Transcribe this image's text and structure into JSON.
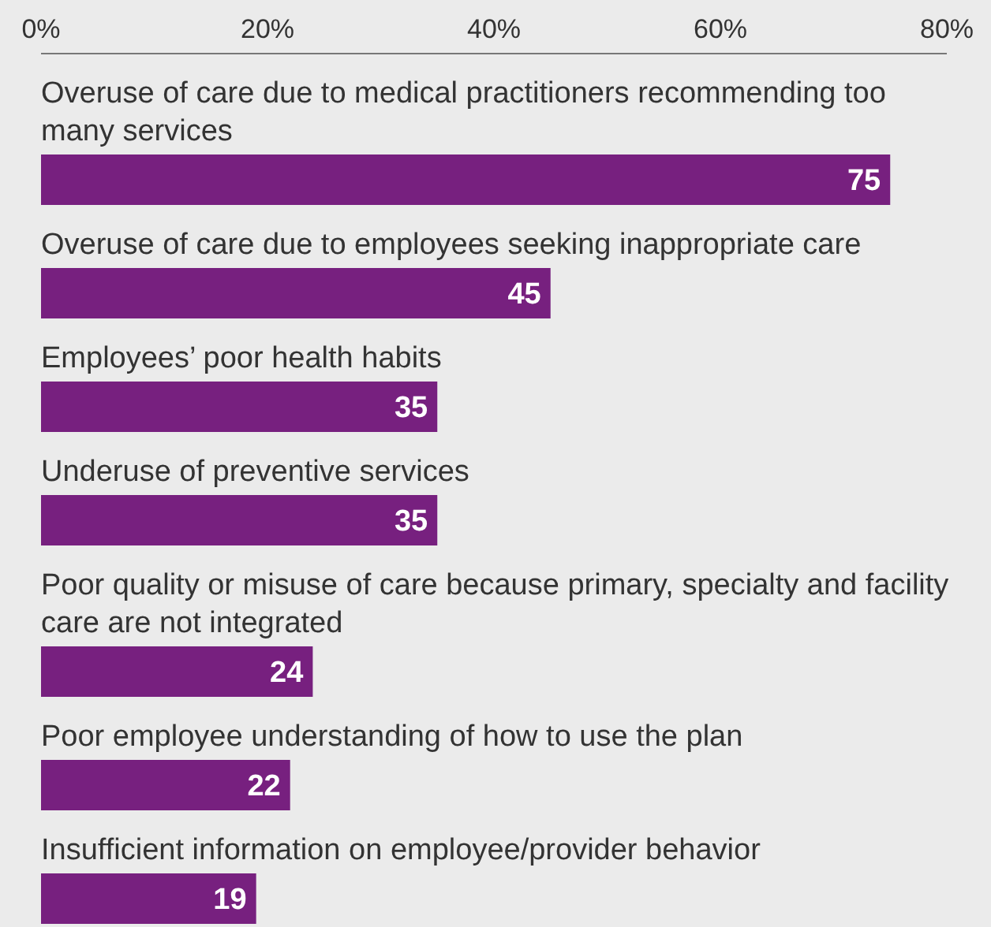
{
  "chart_data": {
    "type": "bar",
    "orientation": "horizontal",
    "categories": [
      "Overuse of care due to medical practitioners recommending too many services",
      "Overuse of care due to employees seeking inappropriate care",
      "Employees’ poor health habits",
      "Underuse of preventive services",
      "Poor quality or misuse of care because primary, specialty and facility care are not integrated",
      "Poor employee understanding of how to use the plan",
      "Insufficient information on employee/provider behavior"
    ],
    "values": [
      75,
      45,
      35,
      35,
      24,
      22,
      19
    ],
    "color": "#77207f",
    "xlim": [
      0,
      80
    ],
    "xticks": [
      {
        "value": 0,
        "label": "0%"
      },
      {
        "value": 20,
        "label": "20%"
      },
      {
        "value": 40,
        "label": "40%"
      },
      {
        "value": 60,
        "label": "60%"
      },
      {
        "value": 80,
        "label": "80%"
      }
    ],
    "data_labels": true
  }
}
